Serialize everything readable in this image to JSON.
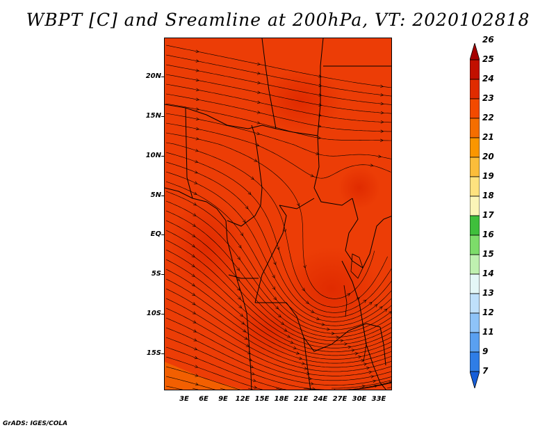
{
  "title": "WBPT [C] and Sreamline at 200hPa, VT: 2020102818",
  "footer": "GrADS: IGES/COLA",
  "map": {
    "lat_labels": [
      "20N",
      "15N",
      "10N",
      "5N",
      "EQ",
      "5S",
      "10S",
      "15S"
    ],
    "lon_labels": [
      "3E",
      "6E",
      "9E",
      "12E",
      "15E",
      "18E",
      "21E",
      "24E",
      "27E",
      "30E",
      "33E"
    ],
    "fill_color": "#ec3d06"
  },
  "colorbar": {
    "labels": [
      "26",
      "25",
      "24",
      "23",
      "22",
      "21",
      "20",
      "19",
      "18",
      "17",
      "16",
      "15",
      "14",
      "13",
      "12",
      "11",
      "9",
      "7"
    ],
    "colors": [
      "#a50000",
      "#c21000",
      "#e02b00",
      "#f34a00",
      "#f56e00",
      "#fa9600",
      "#fbbd3a",
      "#fee27f",
      "#fbf5b8",
      "#3fbf3c",
      "#7ddc6a",
      "#bff0b0",
      "#e4f7f7",
      "#bfe0fb",
      "#8ec3f8",
      "#5aa0f0",
      "#2f7de6",
      "#175ed8"
    ]
  }
}
